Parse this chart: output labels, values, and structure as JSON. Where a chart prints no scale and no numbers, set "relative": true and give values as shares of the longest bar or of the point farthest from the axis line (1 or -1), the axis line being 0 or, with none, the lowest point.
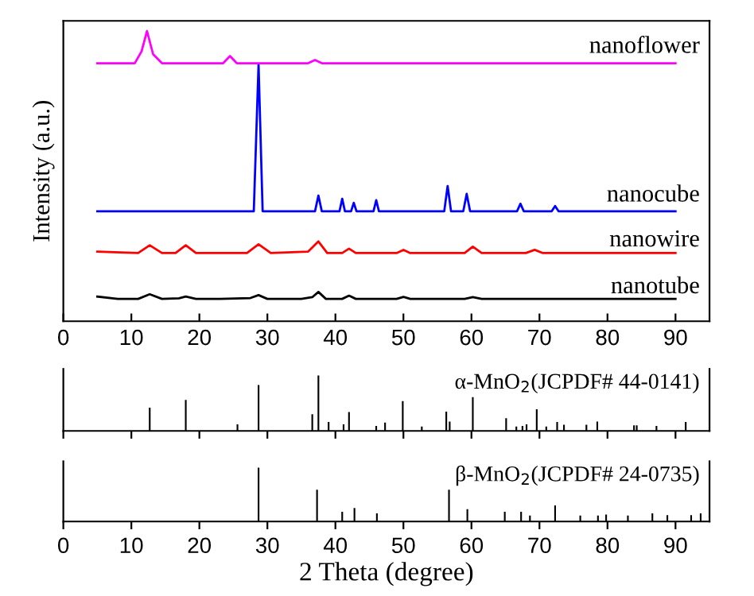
{
  "chart_data": [
    {
      "type": "line",
      "relative": true,
      "ylabel": "Intensity (a.u.)",
      "xlim": [
        0,
        95
      ],
      "xticks": [
        0,
        10,
        20,
        30,
        40,
        50,
        60,
        70,
        80,
        90
      ],
      "tick_labels": "x",
      "grid": false,
      "legend": false,
      "marker": "none",
      "line_style": "solid",
      "series": [
        {
          "name": "nanotube",
          "color": "#000000",
          "x": [
            5,
            8,
            11,
            12.7,
            14.5,
            17,
            18,
            19.5,
            23,
            27.5,
            28.7,
            30,
            35,
            36.6,
            37.5,
            38.6,
            41,
            42,
            43,
            49,
            50,
            51,
            59,
            60.2,
            61.5,
            70,
            80,
            90
          ],
          "values": [
            0.085,
            0.077,
            0.077,
            0.093,
            0.077,
            0.079,
            0.085,
            0.077,
            0.077,
            0.08,
            0.09,
            0.077,
            0.077,
            0.083,
            0.101,
            0.077,
            0.077,
            0.088,
            0.077,
            0.077,
            0.084,
            0.077,
            0.077,
            0.083,
            0.077,
            0.077,
            0.077,
            0.077
          ]
        },
        {
          "name": "nanowire",
          "color": "#ff0000",
          "x": [
            5,
            11,
            12.7,
            14.5,
            16.5,
            18,
            19.5,
            27,
            28.7,
            30.5,
            36,
            37.5,
            38.8,
            41,
            42,
            43,
            49,
            50,
            51,
            59,
            60.2,
            61.5,
            68,
            69.3,
            70.5,
            80,
            90
          ],
          "values": [
            0.24,
            0.235,
            0.262,
            0.235,
            0.235,
            0.262,
            0.235,
            0.235,
            0.265,
            0.235,
            0.24,
            0.275,
            0.235,
            0.235,
            0.25,
            0.235,
            0.235,
            0.246,
            0.235,
            0.235,
            0.257,
            0.235,
            0.235,
            0.246,
            0.235,
            0.235,
            0.235
          ]
        },
        {
          "name": "nanocube",
          "color": "#0000ff",
          "x": [
            5,
            28,
            28.7,
            29.3,
            37,
            37.5,
            38,
            40.6,
            41,
            41.4,
            42.3,
            42.7,
            43.1,
            45.6,
            46,
            46.4,
            56,
            56.5,
            57,
            58.8,
            59.3,
            59.8,
            66.7,
            67.2,
            67.7,
            71.8,
            72.3,
            72.8,
            90
          ],
          "values": [
            0.379,
            0.379,
            0.885,
            0.379,
            0.379,
            0.433,
            0.379,
            0.379,
            0.422,
            0.379,
            0.379,
            0.408,
            0.379,
            0.379,
            0.417,
            0.379,
            0.379,
            0.466,
            0.379,
            0.379,
            0.439,
            0.379,
            0.379,
            0.405,
            0.379,
            0.379,
            0.397,
            0.379,
            0.379
          ]
        },
        {
          "name": "nanoflower",
          "color": "#ff00ff",
          "x": [
            5,
            10.5,
            11.5,
            12.3,
            13.2,
            14.5,
            23.5,
            24.5,
            25.5,
            36,
            37,
            38,
            90
          ],
          "values": [
            0.889,
            0.889,
            0.93,
            1.0,
            0.92,
            0.889,
            0.889,
            0.914,
            0.889,
            0.889,
            0.9,
            0.889,
            0.889
          ]
        }
      ]
    },
    {
      "type": "bar",
      "relative": true,
      "title": "α-MnO$_{2}$(JCPDF# 44-0141)",
      "xlim": [
        0,
        95
      ],
      "xticks": [
        0,
        10,
        20,
        30,
        40,
        50,
        60,
        70,
        80,
        90
      ],
      "tick_labels": false,
      "color": "#000000",
      "x": [
        12.7,
        18,
        25.6,
        28.7,
        36.6,
        37.5,
        39,
        41.2,
        42,
        46,
        47.3,
        49.9,
        52.7,
        56.3,
        56.8,
        60.2,
        65.1,
        66.6,
        67.5,
        68.1,
        69.6,
        71,
        72.6,
        73.6,
        76.9,
        78.5,
        83.9,
        84.3,
        87.2,
        91.5
      ],
      "values": [
        0.42,
        0.56,
        0.12,
        0.83,
        0.3,
        1.0,
        0.16,
        0.12,
        0.34,
        0.09,
        0.15,
        0.54,
        0.08,
        0.35,
        0.17,
        0.61,
        0.23,
        0.08,
        0.09,
        0.12,
        0.39,
        0.08,
        0.16,
        0.11,
        0.11,
        0.17,
        0.1,
        0.1,
        0.09,
        0.16
      ]
    },
    {
      "type": "bar",
      "relative": true,
      "title": "β-MnO$_{2}$(JCPDF# 24-0735)",
      "xlabel": "2 Theta (degree)",
      "xlim": [
        0,
        95
      ],
      "xticks": [
        0,
        10,
        20,
        30,
        40,
        50,
        60,
        70,
        80,
        90
      ],
      "tick_labels": "x",
      "color": "#000000",
      "x": [
        28.7,
        37.3,
        41,
        42.8,
        46.1,
        56.7,
        59.4,
        64.9,
        67.3,
        68.6,
        72.3,
        76,
        78.6,
        79.8,
        83,
        86.6,
        88.8,
        92.3,
        93.7
      ],
      "values": [
        1.0,
        0.59,
        0.18,
        0.25,
        0.15,
        0.59,
        0.23,
        0.18,
        0.18,
        0.11,
        0.3,
        0.11,
        0.11,
        0.13,
        0.11,
        0.15,
        0.12,
        0.12,
        0.15
      ]
    }
  ]
}
